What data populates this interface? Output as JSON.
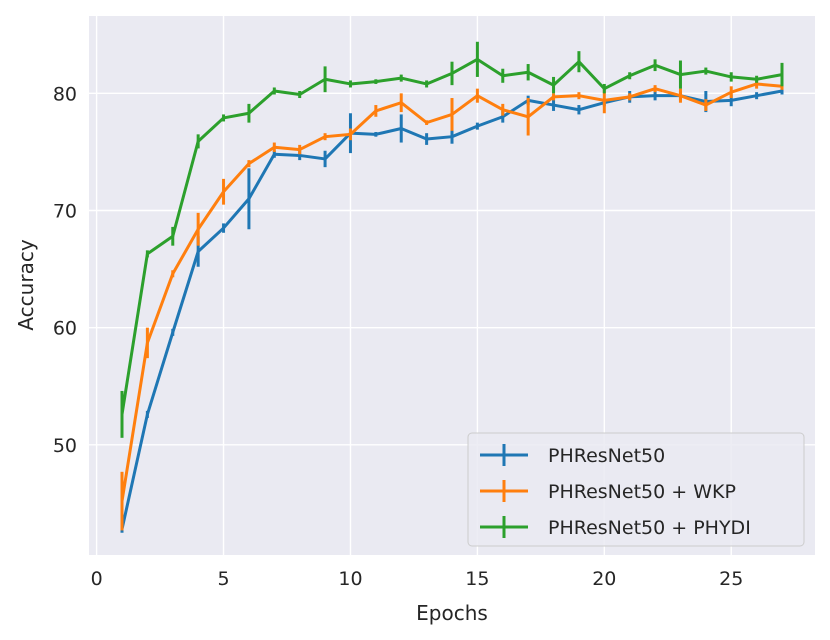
{
  "chart_data": {
    "type": "line",
    "title": "",
    "xlabel": "Epochs",
    "ylabel": "Accuracy",
    "xlim": [
      -0.3,
      28.3
    ],
    "ylim": [
      40.6,
      86.6
    ],
    "xticks": [
      0,
      5,
      10,
      15,
      20,
      25
    ],
    "yticks": [
      50,
      60,
      70,
      80
    ],
    "grid": true,
    "legend_position": "lower-right",
    "x": [
      1,
      2,
      3,
      4,
      5,
      6,
      7,
      8,
      9,
      10,
      11,
      12,
      13,
      14,
      15,
      16,
      17,
      18,
      19,
      20,
      21,
      22,
      23,
      24,
      25,
      26,
      27
    ],
    "series": [
      {
        "name": "PHResNet50",
        "color": "#1f77b4",
        "values": [
          42.8,
          52.6,
          59.6,
          66.5,
          68.5,
          71.0,
          74.8,
          74.7,
          74.4,
          76.6,
          76.5,
          77.0,
          76.1,
          76.3,
          77.2,
          78.0,
          79.4,
          79.0,
          78.6,
          79.2,
          79.7,
          79.8,
          79.8,
          79.3,
          79.4,
          79.8,
          80.2
        ],
        "errors": [
          0.3,
          0.3,
          0.3,
          1.3,
          0.4,
          2.6,
          0.3,
          0.4,
          0.7,
          1.7,
          0.2,
          1.2,
          0.5,
          0.6,
          0.3,
          0.5,
          0.4,
          0.5,
          0.4,
          0.3,
          0.5,
          0.4,
          0.4,
          0.9,
          0.5,
          0.3,
          0.3
        ]
      },
      {
        "name": "PHResNet50 + WKP",
        "color": "#ff7f0e",
        "values": [
          45.2,
          58.7,
          64.6,
          68.4,
          71.6,
          74.0,
          75.4,
          75.2,
          76.3,
          76.5,
          78.5,
          79.2,
          77.5,
          78.2,
          79.8,
          78.6,
          78.0,
          79.7,
          79.8,
          79.4,
          79.7,
          80.4,
          79.8,
          79.0,
          80.1,
          80.8,
          80.6
        ],
        "errors": [
          2.5,
          1.3,
          0.3,
          1.4,
          1.1,
          0.3,
          0.4,
          0.4,
          0.3,
          0.5,
          0.5,
          0.8,
          0.2,
          1.4,
          0.6,
          0.5,
          1.6,
          0.3,
          0.3,
          1.1,
          0.3,
          0.3,
          0.6,
          0.5,
          0.5,
          0.4,
          0.3
        ]
      },
      {
        "name": "PHResNet50 + PHYDI",
        "color": "#2ca02c",
        "values": [
          52.6,
          66.3,
          67.8,
          75.9,
          77.9,
          78.3,
          80.2,
          79.9,
          81.2,
          80.8,
          81.0,
          81.3,
          80.8,
          81.7,
          82.9,
          81.5,
          81.8,
          80.7,
          82.7,
          80.4,
          81.5,
          82.4,
          81.6,
          81.9,
          81.4,
          81.2,
          81.6
        ],
        "errors": [
          2.0,
          0.3,
          0.8,
          0.6,
          0.3,
          0.8,
          0.3,
          0.3,
          1.1,
          0.3,
          0.2,
          0.3,
          0.3,
          1.0,
          1.5,
          0.6,
          0.7,
          0.7,
          0.9,
          0.4,
          0.3,
          0.5,
          1.2,
          0.3,
          0.4,
          0.3,
          1.0
        ]
      }
    ]
  }
}
